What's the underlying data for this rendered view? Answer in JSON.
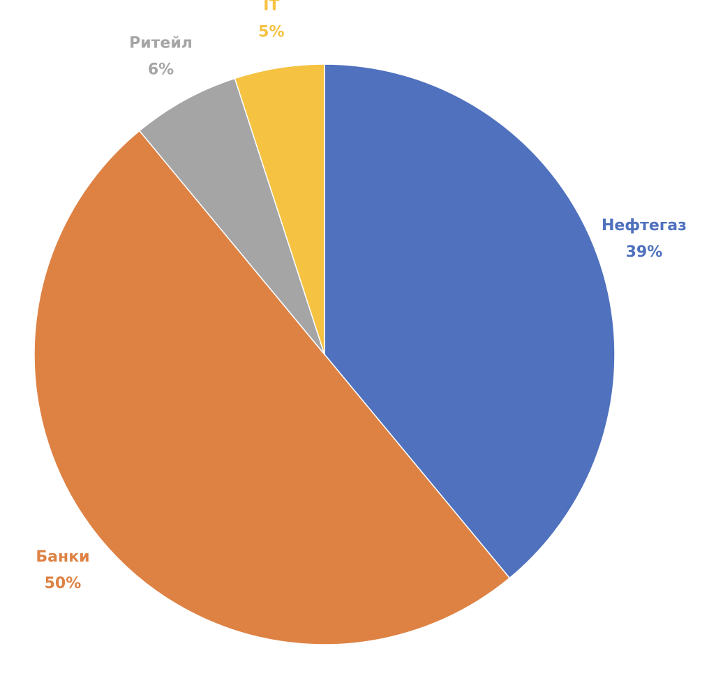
{
  "chart_data": {
    "type": "pie",
    "categories": [
      "Нефтегаз",
      "Банки",
      "Ритейл",
      "IT"
    ],
    "values": [
      39,
      50,
      6,
      5
    ],
    "value_labels": [
      "39%",
      "50%",
      "6%",
      "5%"
    ],
    "colors": [
      "#4f71be",
      "#de8244",
      "#a5a5a5",
      "#f5c242"
    ]
  }
}
